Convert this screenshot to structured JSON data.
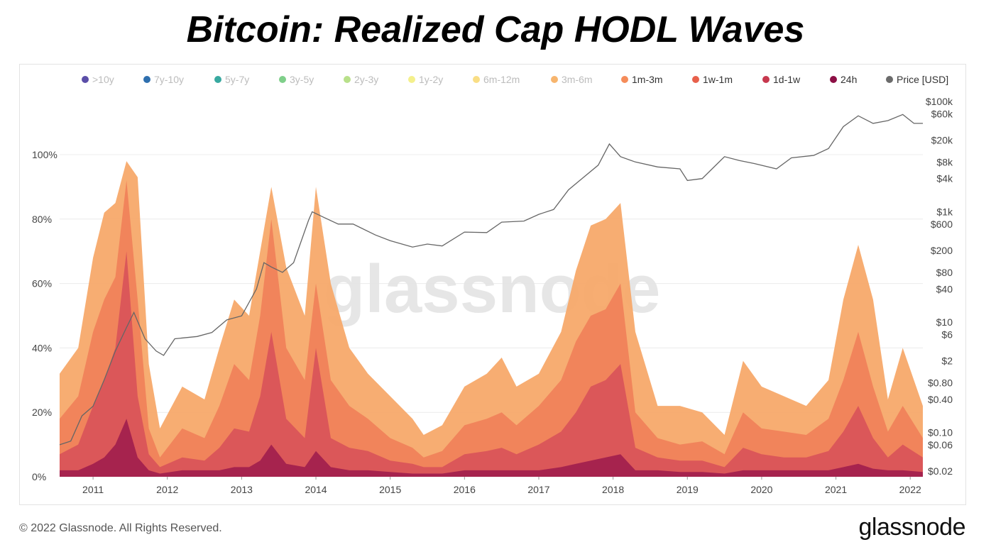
{
  "page": {
    "title": "Bitcoin: Realized Cap HODL Waves",
    "copyright": "© 2022 Glassnode. All Rights Reserved.",
    "brand": "glassnode",
    "watermark": "glassnode"
  },
  "chart_data": {
    "type": "area",
    "title": "Bitcoin: Realized Cap HODL Waves",
    "stacked": true,
    "y_left": {
      "ticks": [
        "0%",
        "20%",
        "40%",
        "60%",
        "80%",
        "100%"
      ],
      "range": [
        0,
        100
      ],
      "unit": "%"
    },
    "y_right": {
      "scale": "log",
      "ticks": [
        "$0.02",
        "$0.06",
        "$0.10",
        "$0.40",
        "$0.80",
        "$2",
        "$6",
        "$10",
        "$40",
        "$80",
        "$200",
        "$600",
        "$1k",
        "$4k",
        "$8k",
        "$20k",
        "$60k",
        "$100k"
      ],
      "tick_values": [
        0.02,
        0.06,
        0.1,
        0.4,
        0.8,
        2,
        6,
        10,
        40,
        80,
        200,
        600,
        1000,
        4000,
        8000,
        20000,
        60000,
        100000
      ]
    },
    "x_axis": {
      "ticks": [
        "2011",
        "2012",
        "2013",
        "2014",
        "2015",
        "2016",
        "2017",
        "2018",
        "2019",
        "2020",
        "2021",
        "2022"
      ],
      "range": [
        2010.55,
        2022.17
      ]
    },
    "legend": [
      {
        "name": ">10y",
        "color": "#5b4ea8",
        "active": false
      },
      {
        "name": "7y-10y",
        "color": "#2e6fae",
        "active": false
      },
      {
        "name": "5y-7y",
        "color": "#38a9a0",
        "active": false
      },
      {
        "name": "3y-5y",
        "color": "#7fcf8a",
        "active": false
      },
      {
        "name": "2y-3y",
        "color": "#b8e08a",
        "active": false
      },
      {
        "name": "1y-2y",
        "color": "#f4f08c",
        "active": false
      },
      {
        "name": "6m-12m",
        "color": "#f9de85",
        "active": false
      },
      {
        "name": "3m-6m",
        "color": "#f7b56e",
        "active": false
      },
      {
        "name": "1m-3m",
        "color": "#f58c5a",
        "active": true
      },
      {
        "name": "1w-1m",
        "color": "#e8604b",
        "active": true
      },
      {
        "name": "1d-1w",
        "color": "#c7384e",
        "active": true
      },
      {
        "name": "24h",
        "color": "#8c0f45",
        "active": true
      },
      {
        "name": "Price [USD]",
        "color": "#6b6b6b",
        "active": true
      }
    ],
    "x": [
      2010.55,
      2010.8,
      2011.0,
      2011.15,
      2011.3,
      2011.45,
      2011.6,
      2011.75,
      2011.9,
      2012.2,
      2012.5,
      2012.7,
      2012.9,
      2013.1,
      2013.25,
      2013.4,
      2013.6,
      2013.85,
      2014.0,
      2014.2,
      2014.45,
      2014.7,
      2015.0,
      2015.3,
      2015.45,
      2015.7,
      2016.0,
      2016.3,
      2016.5,
      2016.7,
      2017.0,
      2017.3,
      2017.5,
      2017.7,
      2017.9,
      2018.1,
      2018.3,
      2018.6,
      2018.9,
      2019.2,
      2019.5,
      2019.75,
      2020.0,
      2020.3,
      2020.6,
      2020.9,
      2021.1,
      2021.3,
      2021.5,
      2021.7,
      2021.9,
      2022.17
    ],
    "series": [
      {
        "name": "1m-3m",
        "color": "#f7a96a",
        "values": [
          32,
          40,
          68,
          82,
          85,
          98,
          93,
          35,
          15,
          28,
          24,
          40,
          55,
          50,
          70,
          90,
          65,
          50,
          90,
          60,
          40,
          32,
          25,
          18,
          13,
          16,
          28,
          32,
          37,
          28,
          32,
          45,
          64,
          78,
          80,
          85,
          45,
          22,
          22,
          20,
          13,
          36,
          28,
          25,
          22,
          30,
          55,
          72,
          55,
          24,
          40,
          22
        ]
      },
      {
        "name": "1w-1m",
        "color": "#f0825a",
        "values": [
          18,
          25,
          45,
          55,
          62,
          92,
          55,
          15,
          6,
          15,
          12,
          22,
          35,
          30,
          50,
          80,
          40,
          30,
          60,
          30,
          22,
          18,
          12,
          9,
          6,
          8,
          16,
          18,
          20,
          16,
          22,
          30,
          42,
          50,
          52,
          60,
          20,
          12,
          10,
          11,
          7,
          20,
          15,
          14,
          13,
          18,
          30,
          45,
          28,
          14,
          22,
          12
        ]
      },
      {
        "name": "1d-1w",
        "color": "#d9545a",
        "values": [
          7,
          10,
          22,
          30,
          40,
          70,
          25,
          7,
          3,
          6,
          5,
          9,
          15,
          14,
          25,
          45,
          18,
          12,
          40,
          12,
          9,
          8,
          5,
          4,
          3,
          3,
          7,
          8,
          9,
          7,
          10,
          14,
          20,
          28,
          30,
          35,
          9,
          6,
          5,
          5,
          3,
          9,
          7,
          6,
          6,
          8,
          14,
          22,
          12,
          6,
          10,
          6
        ]
      },
      {
        "name": "24h",
        "color": "#a3214e",
        "values": [
          2,
          2,
          4,
          6,
          10,
          18,
          6,
          2,
          1,
          2,
          2,
          2,
          3,
          3,
          5,
          10,
          4,
          3,
          8,
          3,
          2,
          2,
          1.5,
          1,
          1,
          1,
          2,
          2,
          2,
          2,
          2,
          3,
          4,
          5,
          6,
          7,
          2,
          2,
          1.5,
          1.5,
          1,
          2,
          2,
          2,
          2,
          2,
          3,
          4,
          2.5,
          2,
          2,
          1.5
        ]
      }
    ],
    "price_series": {
      "name": "Price [USD]",
      "x": [
        2010.55,
        2010.7,
        2010.85,
        2011.0,
        2011.15,
        2011.3,
        2011.45,
        2011.55,
        2011.7,
        2011.85,
        2011.95,
        2012.1,
        2012.4,
        2012.6,
        2012.8,
        2013.0,
        2013.2,
        2013.3,
        2013.4,
        2013.55,
        2013.7,
        2013.9,
        2013.95,
        2014.1,
        2014.3,
        2014.5,
        2014.8,
        2015.0,
        2015.3,
        2015.5,
        2015.7,
        2016.0,
        2016.3,
        2016.5,
        2016.8,
        2017.0,
        2017.2,
        2017.4,
        2017.6,
        2017.8,
        2017.95,
        2018.1,
        2018.3,
        2018.6,
        2018.9,
        2019.0,
        2019.2,
        2019.5,
        2019.7,
        2019.9,
        2020.2,
        2020.4,
        2020.7,
        2020.9,
        2021.1,
        2021.3,
        2021.5,
        2021.7,
        2021.9,
        2022.05,
        2022.17
      ],
      "values": [
        0.06,
        0.07,
        0.2,
        0.3,
        0.9,
        3,
        8,
        15,
        5,
        3,
        2.5,
        5,
        5.5,
        6.5,
        11,
        13,
        40,
        120,
        100,
        80,
        120,
        700,
        1000,
        800,
        600,
        600,
        380,
        300,
        230,
        260,
        240,
        430,
        420,
        650,
        680,
        900,
        1100,
        2500,
        4200,
        7000,
        17000,
        10000,
        8000,
        6500,
        6000,
        3700,
        4000,
        10000,
        8500,
        7500,
        6000,
        9500,
        10500,
        14000,
        35000,
        55000,
        40000,
        45000,
        58000,
        40000,
        40000
      ]
    }
  }
}
